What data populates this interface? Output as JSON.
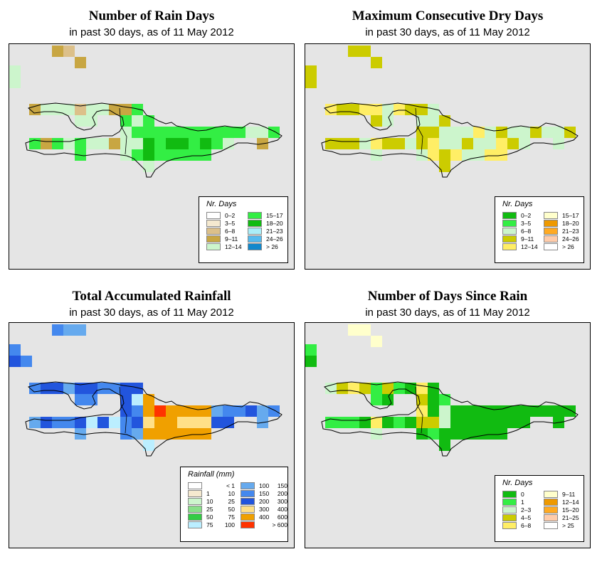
{
  "panels": [
    {
      "title": "Number of Rain Days",
      "subtitle": "in past 30 days, as of  11 May 2012",
      "legend_title": "Nr. Days",
      "legend": [
        {
          "label": "0–2",
          "color": "#ffffff"
        },
        {
          "label": "3–5",
          "color": "#f5e9cf"
        },
        {
          "label": "6–8",
          "color": "#dcc08a"
        },
        {
          "label": "9–11",
          "color": "#c8a642"
        },
        {
          "label": "12–14",
          "color": "#ccf5cc"
        },
        {
          "label": "15–17",
          "color": "#33ee44"
        },
        {
          "label": "18–20",
          "color": "#11bb11"
        },
        {
          "label": "21–23",
          "color": "#aaeef7"
        },
        {
          "label": "24–26",
          "color": "#55bbee"
        },
        {
          "label": "> 26",
          "color": "#1188cc"
        }
      ],
      "field": "rain"
    },
    {
      "title": "Maximum Consecutive Dry Days",
      "subtitle": "in past 30 days, as of  11 May 2012",
      "legend_title": "Nr. Days",
      "legend": [
        {
          "label": "0–2",
          "color": "#11bb11"
        },
        {
          "label": "3–5",
          "color": "#33ee44"
        },
        {
          "label": "6–8",
          "color": "#ccf5cc"
        },
        {
          "label": "9–11",
          "color": "#cccc00"
        },
        {
          "label": "12–14",
          "color": "#ffee66"
        },
        {
          "label": "15–17",
          "color": "#ffffcc"
        },
        {
          "label": "18–20",
          "color": "#ee9900"
        },
        {
          "label": "21–23",
          "color": "#ffaa22"
        },
        {
          "label": "24–26",
          "color": "#ffccaa"
        },
        {
          "label": "> 26",
          "color": "#ffffff"
        }
      ],
      "field": "dry"
    },
    {
      "title": "Total Accumulated Rainfall",
      "subtitle": "in past 30 days, as of  11 May 2012",
      "legend_title": "Rainfall (mm)",
      "legend": [
        {
          "lo": "",
          "hi": "< 1",
          "color": "#ffffff"
        },
        {
          "lo": "1",
          "hi": "10",
          "color": "#f5e9cf"
        },
        {
          "lo": "10",
          "hi": "25",
          "color": "#ccf5cc"
        },
        {
          "lo": "25",
          "hi": "50",
          "color": "#88e088"
        },
        {
          "lo": "50",
          "hi": "75",
          "color": "#33cc44"
        },
        {
          "lo": "75",
          "hi": "100",
          "color": "#bbeeff"
        },
        {
          "lo": "100",
          "hi": "150",
          "color": "#66aaee"
        },
        {
          "lo": "150",
          "hi": "200",
          "color": "#4488ee"
        },
        {
          "lo": "200",
          "hi": "300",
          "color": "#2255dd"
        },
        {
          "lo": "300",
          "hi": "400",
          "color": "#ffe088"
        },
        {
          "lo": "400",
          "hi": "600",
          "color": "#f0a000"
        },
        {
          "lo": "",
          "hi": "> 600",
          "color": "#ff3300"
        }
      ],
      "field": "total"
    },
    {
      "title": "Number of Days Since Rain",
      "subtitle": "in past 30 days, as of  11 May 2012",
      "legend_title": "Nr. Days",
      "legend": [
        {
          "label": "0",
          "color": "#11bb11"
        },
        {
          "label": "1",
          "color": "#33ee44"
        },
        {
          "label": "2–3",
          "color": "#ccf5cc"
        },
        {
          "label": "4–5",
          "color": "#cccc00"
        },
        {
          "label": "6–8",
          "color": "#ffee66"
        },
        {
          "label": "9–11",
          "color": "#ffffcc"
        },
        {
          "label": "12–14",
          "color": "#ee9900"
        },
        {
          "label": "15–20",
          "color": "#ffaa22"
        },
        {
          "label": "21–25",
          "color": "#ffccaa"
        },
        {
          "label": "> 25",
          "color": "#ffffff"
        }
      ],
      "field": "since"
    }
  ]
}
